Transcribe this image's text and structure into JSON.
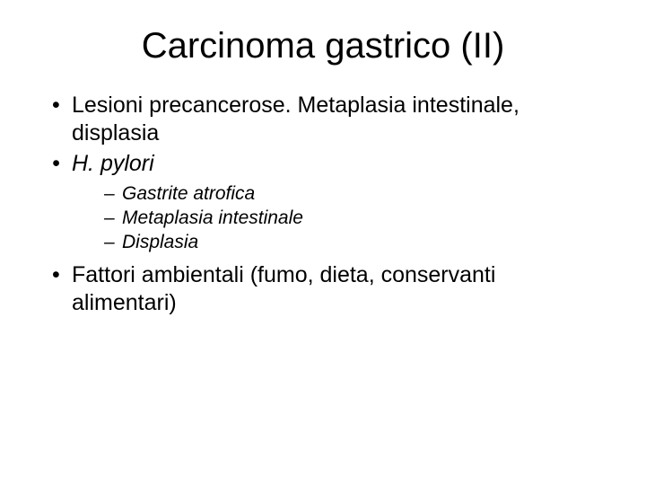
{
  "title": "Carcinoma gastrico (II)",
  "bullets": {
    "b1": "Lesioni precancerose. Metaplasia intestinale, displasia",
    "b2": "H. pylori",
    "b2_sub": {
      "s1": "Gastrite atrofica",
      "s2": "Metaplasia intestinale",
      "s3": "Displasia"
    },
    "b3": "Fattori ambientali (fumo, dieta, conservanti alimentari)"
  },
  "colors": {
    "background": "#ffffff",
    "text": "#000000"
  },
  "typography": {
    "font_family": "Comic Sans MS",
    "title_fontsize_pt": 30,
    "bullet_fontsize_pt": 19,
    "subbullet_fontsize_pt": 16
  }
}
